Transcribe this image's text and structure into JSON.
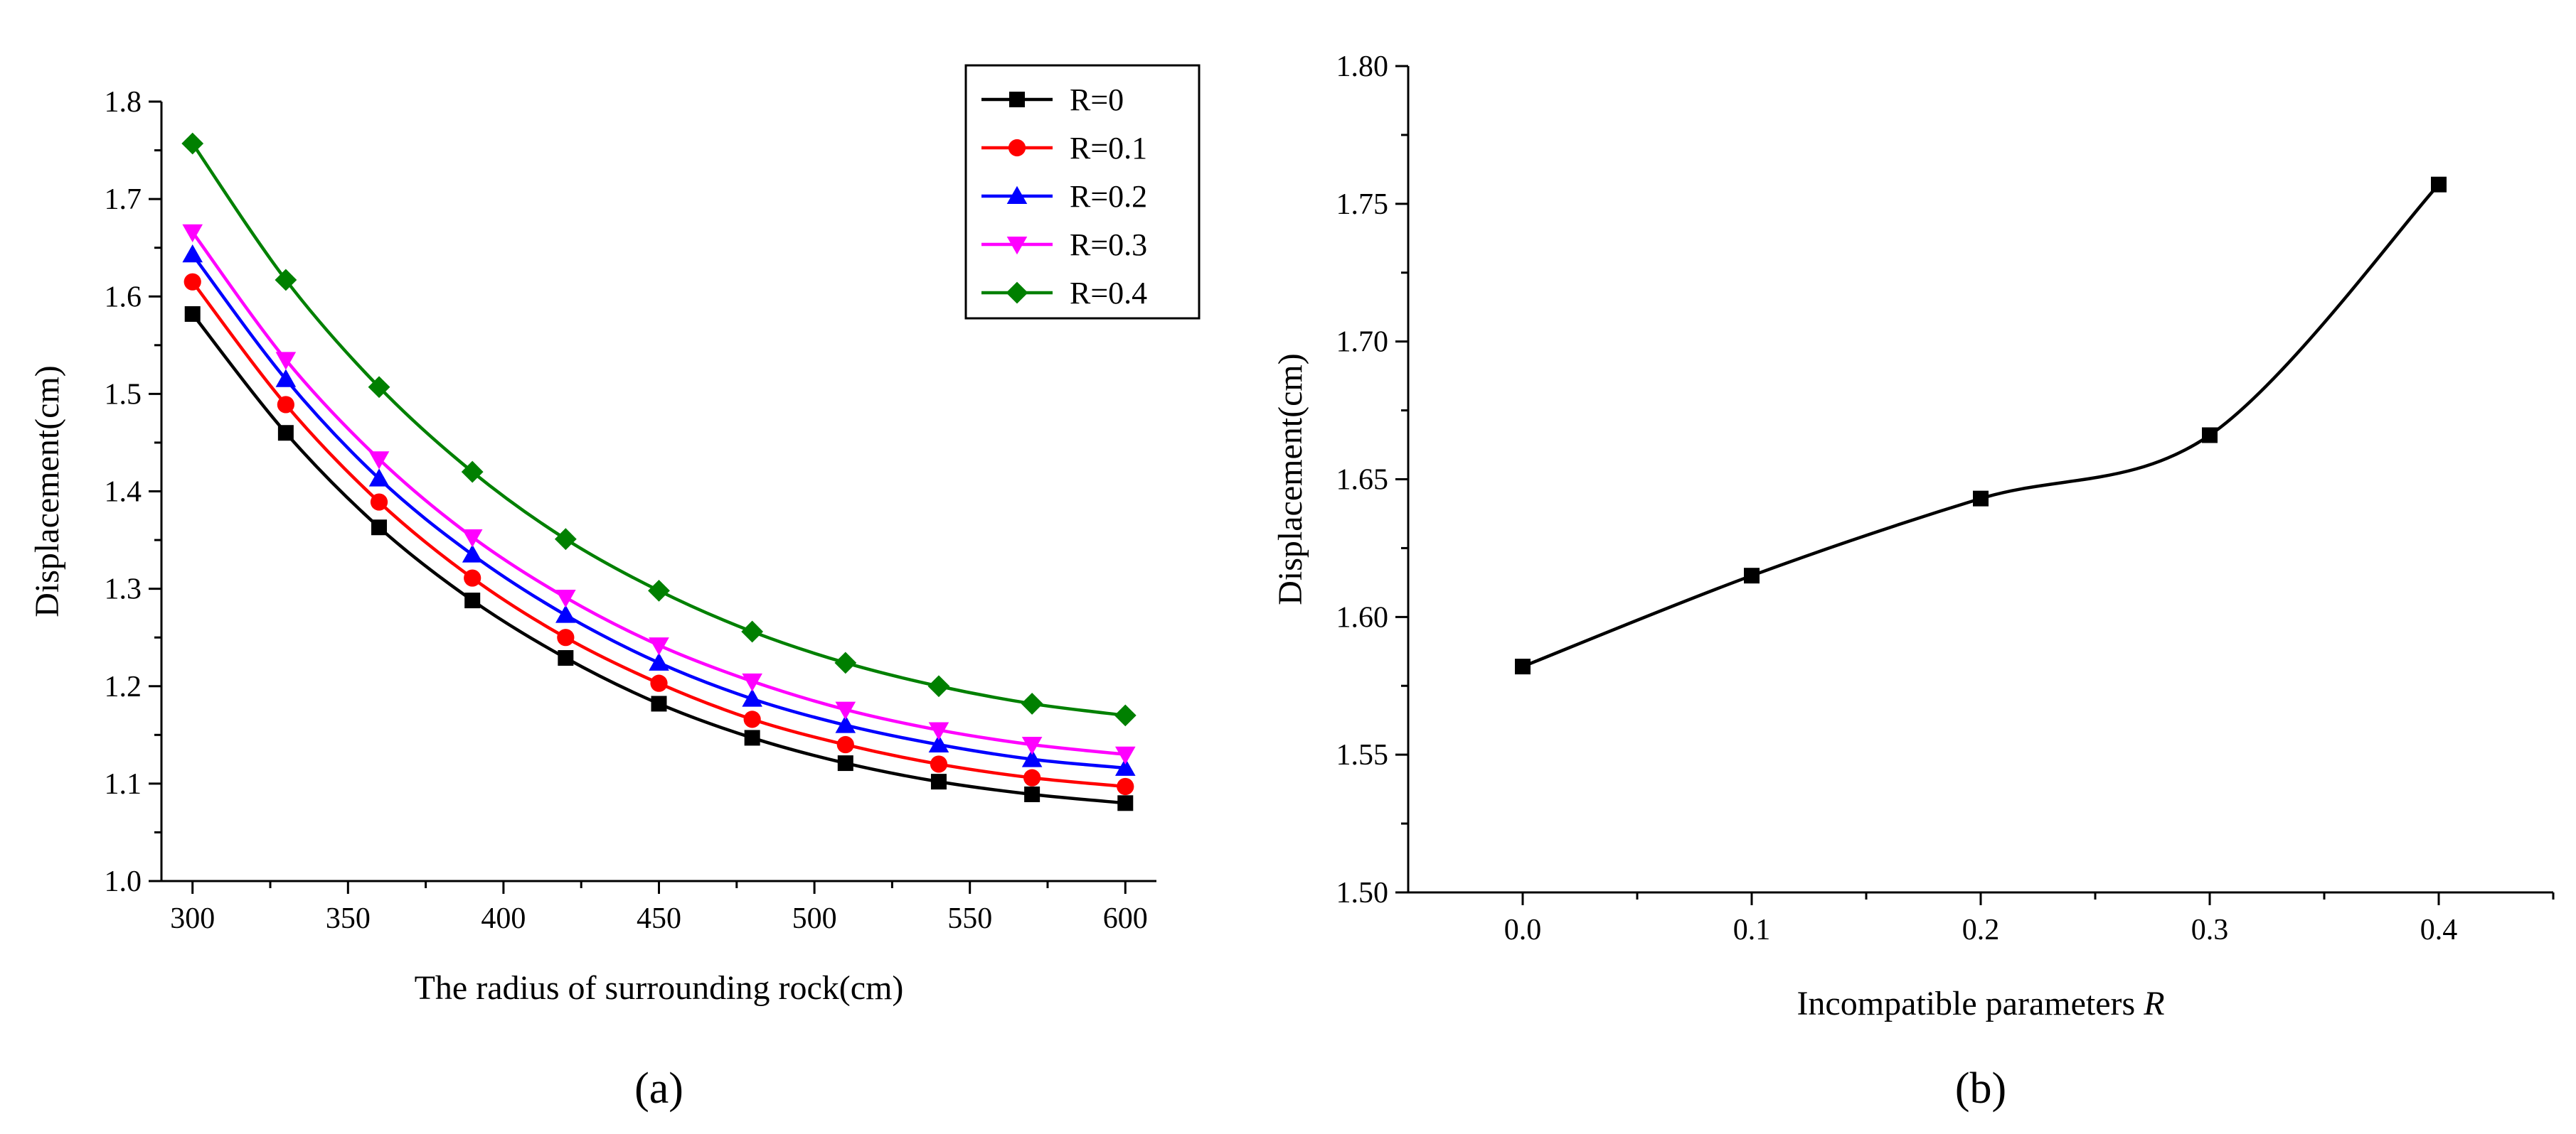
{
  "chart_data": [
    {
      "type": "line",
      "panel_label": "(a)",
      "title": "",
      "xlabel": "The radius of surrounding rock(cm)",
      "ylabel": "Displacement(cm)",
      "x": [
        300,
        330,
        360,
        390,
        420,
        450,
        480,
        510,
        540,
        570,
        600
      ],
      "xlim": [
        290,
        610
      ],
      "ylim": [
        1.0,
        1.8
      ],
      "xticks": [
        "300",
        "350",
        "400",
        "450",
        "500",
        "550",
        "600"
      ],
      "yticks": [
        "1.0",
        "1.1",
        "1.2",
        "1.3",
        "1.4",
        "1.5",
        "1.6",
        "1.7",
        "1.8"
      ],
      "legend_position": "top-right",
      "series": [
        {
          "name": "R=0",
          "color": "#000000",
          "marker": "square",
          "values": [
            1.582,
            1.46,
            1.363,
            1.288,
            1.229,
            1.182,
            1.147,
            1.121,
            1.102,
            1.089,
            1.08
          ]
        },
        {
          "name": "R=0.1",
          "color": "#ff0000",
          "marker": "circle",
          "values": [
            1.615,
            1.489,
            1.389,
            1.311,
            1.25,
            1.203,
            1.166,
            1.14,
            1.12,
            1.106,
            1.097
          ]
        },
        {
          "name": "R=0.2",
          "color": "#0000ff",
          "marker": "triangle-up",
          "values": [
            1.643,
            1.515,
            1.413,
            1.335,
            1.273,
            1.224,
            1.187,
            1.16,
            1.14,
            1.125,
            1.116
          ]
        },
        {
          "name": "R=0.3",
          "color": "#ff00ff",
          "marker": "triangle-down",
          "values": [
            1.666,
            1.535,
            1.433,
            1.353,
            1.291,
            1.242,
            1.205,
            1.176,
            1.155,
            1.14,
            1.13
          ]
        },
        {
          "name": "R=0.4",
          "color": "#008000",
          "marker": "diamond",
          "values": [
            1.757,
            1.617,
            1.507,
            1.42,
            1.351,
            1.298,
            1.256,
            1.224,
            1.2,
            1.182,
            1.17
          ]
        }
      ]
    },
    {
      "type": "line",
      "panel_label": "(b)",
      "title": "",
      "xlabel": "Incompatible parameters",
      "xlabel_italic": "R",
      "ylabel": "Displacement(cm)",
      "x": [
        0.0,
        0.1,
        0.2,
        0.3,
        0.4
      ],
      "xlim": [
        -0.05,
        0.45
      ],
      "ylim": [
        1.5,
        1.8
      ],
      "xticks": [
        "0.0",
        "0.1",
        "0.2",
        "0.3",
        "0.4"
      ],
      "yticks": [
        "1.50",
        "1.55",
        "1.60",
        "1.65",
        "1.70",
        "1.75",
        "1.80"
      ],
      "series": [
        {
          "name": "Displacement",
          "color": "#000000",
          "marker": "square",
          "values": [
            1.582,
            1.615,
            1.643,
            1.666,
            1.757
          ]
        }
      ]
    }
  ]
}
